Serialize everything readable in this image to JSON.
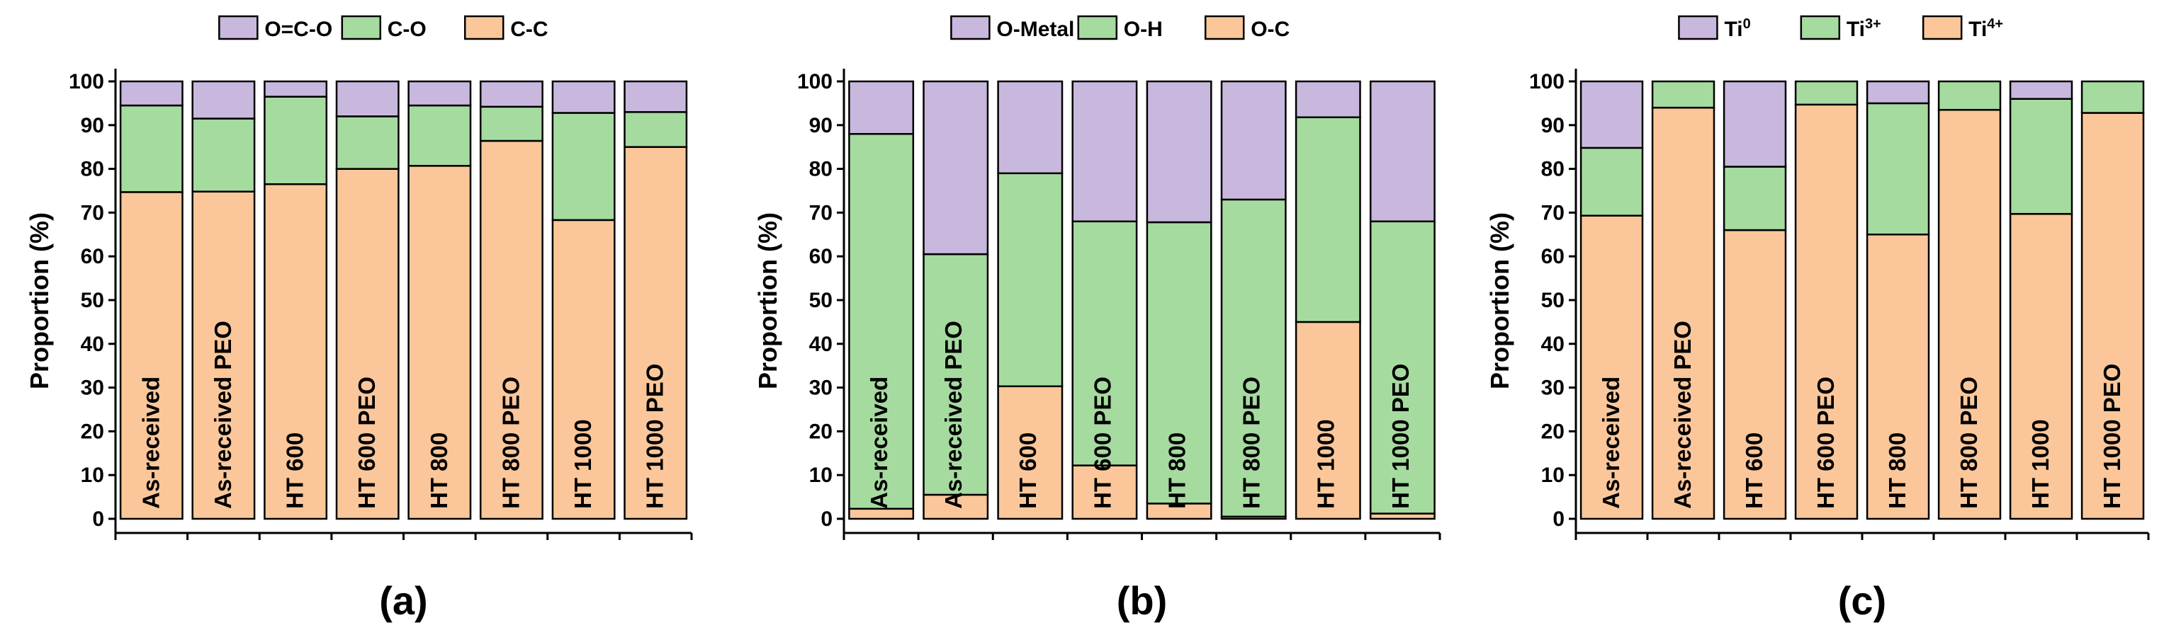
{
  "figure": {
    "panel_labels": [
      "(a)",
      "(b)",
      "(c)"
    ]
  },
  "colors": {
    "top": "#c9b8de",
    "middle": "#a6dba0",
    "bottom": "#fbc79a",
    "edge": "#000000"
  },
  "chart_data": [
    {
      "type": "stacked-bar",
      "panel": "(a)",
      "title": "",
      "xlabel": "",
      "ylabel": "Proportion (%)",
      "ylim": [
        0,
        100
      ],
      "yticks": [
        0,
        10,
        20,
        30,
        40,
        50,
        60,
        70,
        80,
        90,
        100
      ],
      "legend_position": "top",
      "categories": [
        "As-received",
        "As-received PEO",
        "HT 600",
        "HT 600 PEO",
        "HT 800",
        "HT 800 PEO",
        "HT 1000",
        "HT 1000 PEO"
      ],
      "series": [
        {
          "name": "O=C-O",
          "sup": "",
          "values": [
            5.5,
            8.5,
            3.5,
            8,
            5.5,
            5.8,
            7.2,
            7
          ]
        },
        {
          "name": "C-O",
          "sup": "",
          "values": [
            19.8,
            16.7,
            20,
            12,
            13.8,
            7.8,
            24.5,
            8
          ]
        },
        {
          "name": "C-C",
          "sup": "",
          "values": [
            74.7,
            74.8,
            76.5,
            80,
            80.7,
            86.4,
            68.3,
            85
          ]
        }
      ]
    },
    {
      "type": "stacked-bar",
      "panel": "(b)",
      "title": "",
      "xlabel": "",
      "ylabel": "Proportion (%)",
      "ylim": [
        0,
        100
      ],
      "yticks": [
        0,
        10,
        20,
        30,
        40,
        50,
        60,
        70,
        80,
        90,
        100
      ],
      "legend_position": "top",
      "categories": [
        "As-received",
        "As-received PEO",
        "HT 600",
        "HT 600 PEO",
        "HT 800",
        "HT 800 PEO",
        "HT 1000",
        "HT 1000 PEO"
      ],
      "series": [
        {
          "name": "O-Metal",
          "sup": "",
          "values": [
            12,
            39.5,
            21,
            32,
            32.2,
            27,
            8.2,
            32
          ]
        },
        {
          "name": "O-H",
          "sup": "",
          "values": [
            85.7,
            55,
            48.7,
            55.8,
            64.3,
            72.5,
            46.8,
            66.8
          ]
        },
        {
          "name": "O-C",
          "sup": "",
          "values": [
            2.3,
            5.5,
            30.3,
            12.2,
            3.5,
            0.5,
            45,
            1.2
          ]
        }
      ]
    },
    {
      "type": "stacked-bar",
      "panel": "(c)",
      "title": "",
      "xlabel": "",
      "ylabel": "Proportion (%)",
      "ylim": [
        0,
        100
      ],
      "yticks": [
        0,
        10,
        20,
        30,
        40,
        50,
        60,
        70,
        80,
        90,
        100
      ],
      "legend_position": "top",
      "categories": [
        "As-received",
        "As-received PEO",
        "HT 600",
        "HT 600 PEO",
        "HT 800",
        "HT 800 PEO",
        "HT 1000",
        "HT 1000 PEO"
      ],
      "series": [
        {
          "name": "Ti",
          "sup": "0",
          "values": [
            15.2,
            0,
            19.5,
            0,
            5,
            0,
            4,
            0
          ]
        },
        {
          "name": "Ti",
          "sup": "3+",
          "values": [
            15.5,
            6,
            14.5,
            5.3,
            30,
            6.5,
            26.3,
            7.2
          ]
        },
        {
          "name": "Ti",
          "sup": "4+",
          "values": [
            69.3,
            94,
            66,
            94.7,
            65,
            93.5,
            69.7,
            92.8
          ]
        }
      ]
    }
  ]
}
